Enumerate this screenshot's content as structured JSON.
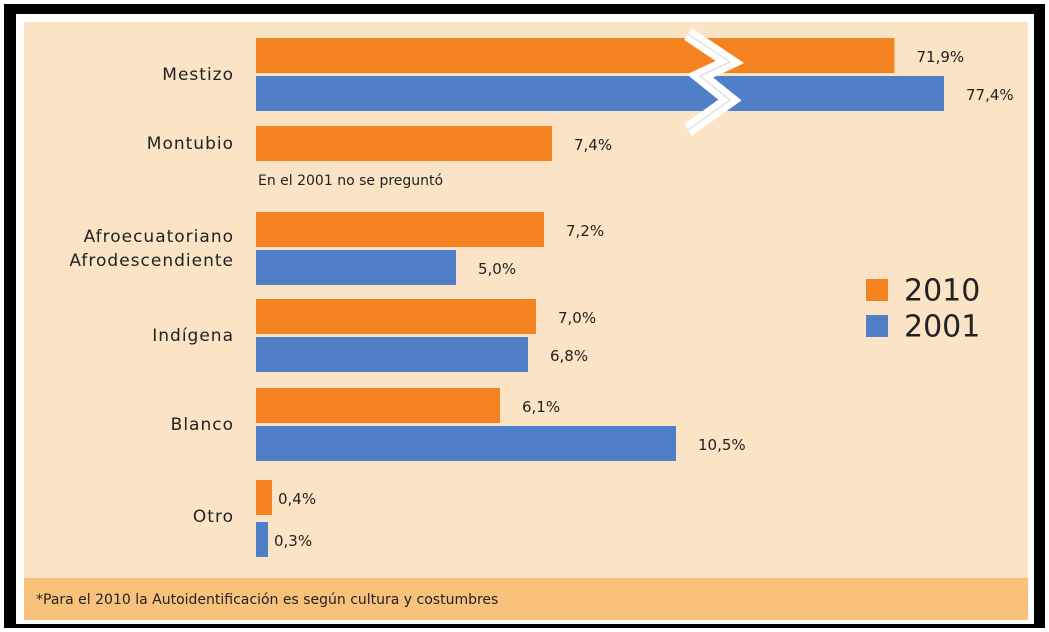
{
  "chart_data": {
    "type": "bar",
    "orientation": "horizontal",
    "categories": [
      "Mestizo",
      "Montubio",
      "Afroecuatoriano\nAfrodescendiente",
      "Indígena",
      "Blanco",
      "Otro"
    ],
    "series": [
      {
        "name": "2010",
        "color": "#f58220",
        "values": [
          71.9,
          7.4,
          7.2,
          7.0,
          6.1,
          0.4
        ],
        "value_labels": [
          "71,9%",
          "7,4%",
          "7,2%",
          "7,0%",
          "6,1%",
          "0,4%"
        ]
      },
      {
        "name": "2001",
        "color": "#4f7fc7",
        "values": [
          77.4,
          null,
          5.0,
          6.8,
          10.5,
          0.3
        ],
        "value_labels": [
          "77,4%",
          null,
          "5,0%",
          "6,8%",
          "10,5%",
          "0,3%"
        ]
      }
    ],
    "annotation": "En el 2001 no se preguntó",
    "footnote": "*Para el 2010 la Autoidentificación es según cultura y costumbres",
    "axis_break": true,
    "legend": "right"
  }
}
